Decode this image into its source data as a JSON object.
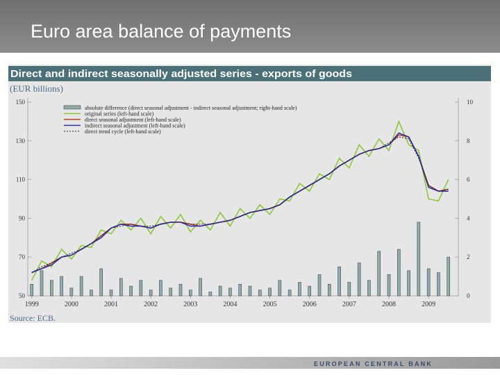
{
  "header": {
    "title": "Euro area balance of payments"
  },
  "footer": {
    "text": "EUROPEAN CENTRAL BANK"
  },
  "chart_data": {
    "type": "line",
    "title": "Direct and indirect seasonally adjusted series - exports of goods",
    "subtitle": "(EUR billions)",
    "source": "Source: ECB.",
    "legend": "upper left",
    "x": [
      1999,
      1999.25,
      1999.5,
      1999.75,
      2000,
      2000.25,
      2000.5,
      2000.75,
      2001,
      2001.25,
      2001.5,
      2001.75,
      2002,
      2002.25,
      2002.5,
      2002.75,
      2003,
      2003.25,
      2003.5,
      2003.75,
      2004,
      2004.25,
      2004.5,
      2004.75,
      2005,
      2005.25,
      2005.5,
      2005.75,
      2006,
      2006.25,
      2006.5,
      2006.75,
      2007,
      2007.25,
      2007.5,
      2007.75,
      2008,
      2008.25,
      2008.5,
      2008.75,
      2009,
      2009.25,
      2009.5
    ],
    "xlim": [
      1998.9,
      2009.75
    ],
    "xticks": [
      1999,
      2000,
      2001,
      2002,
      2003,
      2004,
      2005,
      2006,
      2007,
      2008,
      2009
    ],
    "ylim": [
      50,
      150
    ],
    "yticks": [
      50,
      70,
      90,
      110,
      130,
      150
    ],
    "y2lim": [
      0,
      10
    ],
    "y2ticks": [
      0,
      2,
      4,
      6,
      8,
      10
    ],
    "series": [
      {
        "name": "absolute difference (direct seasonal adjustment - indirect seasonal adjustment; right-hand scale)",
        "type": "bar",
        "axis": "y2",
        "color": "#93aaa9",
        "values": [
          0.6,
          1.3,
          0.8,
          1.0,
          0.4,
          1.0,
          0.3,
          1.4,
          0.3,
          0.9,
          0.5,
          0.8,
          0.3,
          0.8,
          0.4,
          0.6,
          0.3,
          0.9,
          0.2,
          0.5,
          0.4,
          0.6,
          0.5,
          0.3,
          0.4,
          0.8,
          0.3,
          0.7,
          0.5,
          1.1,
          0.6,
          1.5,
          0.7,
          1.7,
          0.8,
          2.3,
          1.1,
          2.4,
          1.3,
          3.8,
          1.4,
          1.2,
          2.0
        ]
      },
      {
        "name": "original series (left-hand scale)",
        "type": "line",
        "color": "#8cc63f",
        "values": [
          58,
          68,
          65,
          74,
          69,
          76,
          75,
          84,
          82,
          89,
          84,
          90,
          82,
          91,
          85,
          92,
          83,
          89,
          84,
          93,
          86,
          95,
          90,
          97,
          92,
          100,
          99,
          108,
          104,
          113,
          110,
          121,
          116,
          128,
          122,
          131,
          125,
          140,
          128,
          125,
          100,
          99,
          110
        ]
      },
      {
        "name": "direct seasonal adjustment (left-hand scale)",
        "type": "line",
        "color": "#b5402c",
        "values": [
          62,
          64,
          67,
          70,
          71,
          74,
          77,
          81,
          85,
          87,
          87,
          86,
          85,
          87,
          88,
          88,
          87,
          86,
          87,
          88,
          89,
          91,
          93,
          94,
          95,
          97,
          101,
          104,
          107,
          110,
          113,
          117,
          120,
          123,
          125,
          126,
          128,
          133,
          132,
          122,
          107,
          104,
          105
        ]
      },
      {
        "name": "indirect seasonal adjustment (left-hand scale)",
        "type": "line",
        "color": "#3030a0",
        "values": [
          62,
          64,
          66,
          70,
          71,
          74,
          77,
          80,
          85,
          87,
          86,
          86,
          85,
          87,
          88,
          88,
          86,
          86,
          87,
          88,
          89,
          91,
          93,
          94,
          95,
          97,
          101,
          104,
          107,
          110,
          113,
          117,
          120,
          123,
          125,
          126,
          128,
          134,
          132,
          122,
          106,
          104,
          104
        ]
      },
      {
        "name": "direct trend cycle  (left-hand scale)",
        "type": "dashed",
        "color": "#222222",
        "values": [
          62,
          65,
          67,
          70,
          72,
          74,
          77,
          81,
          85,
          86,
          87,
          86,
          86,
          87,
          88,
          88,
          87,
          87,
          87,
          88,
          89,
          91,
          93,
          94,
          95,
          97,
          101,
          104,
          107,
          110,
          113,
          117,
          120,
          123,
          125,
          126,
          129,
          132,
          131,
          121,
          107,
          104,
          105
        ]
      }
    ]
  }
}
